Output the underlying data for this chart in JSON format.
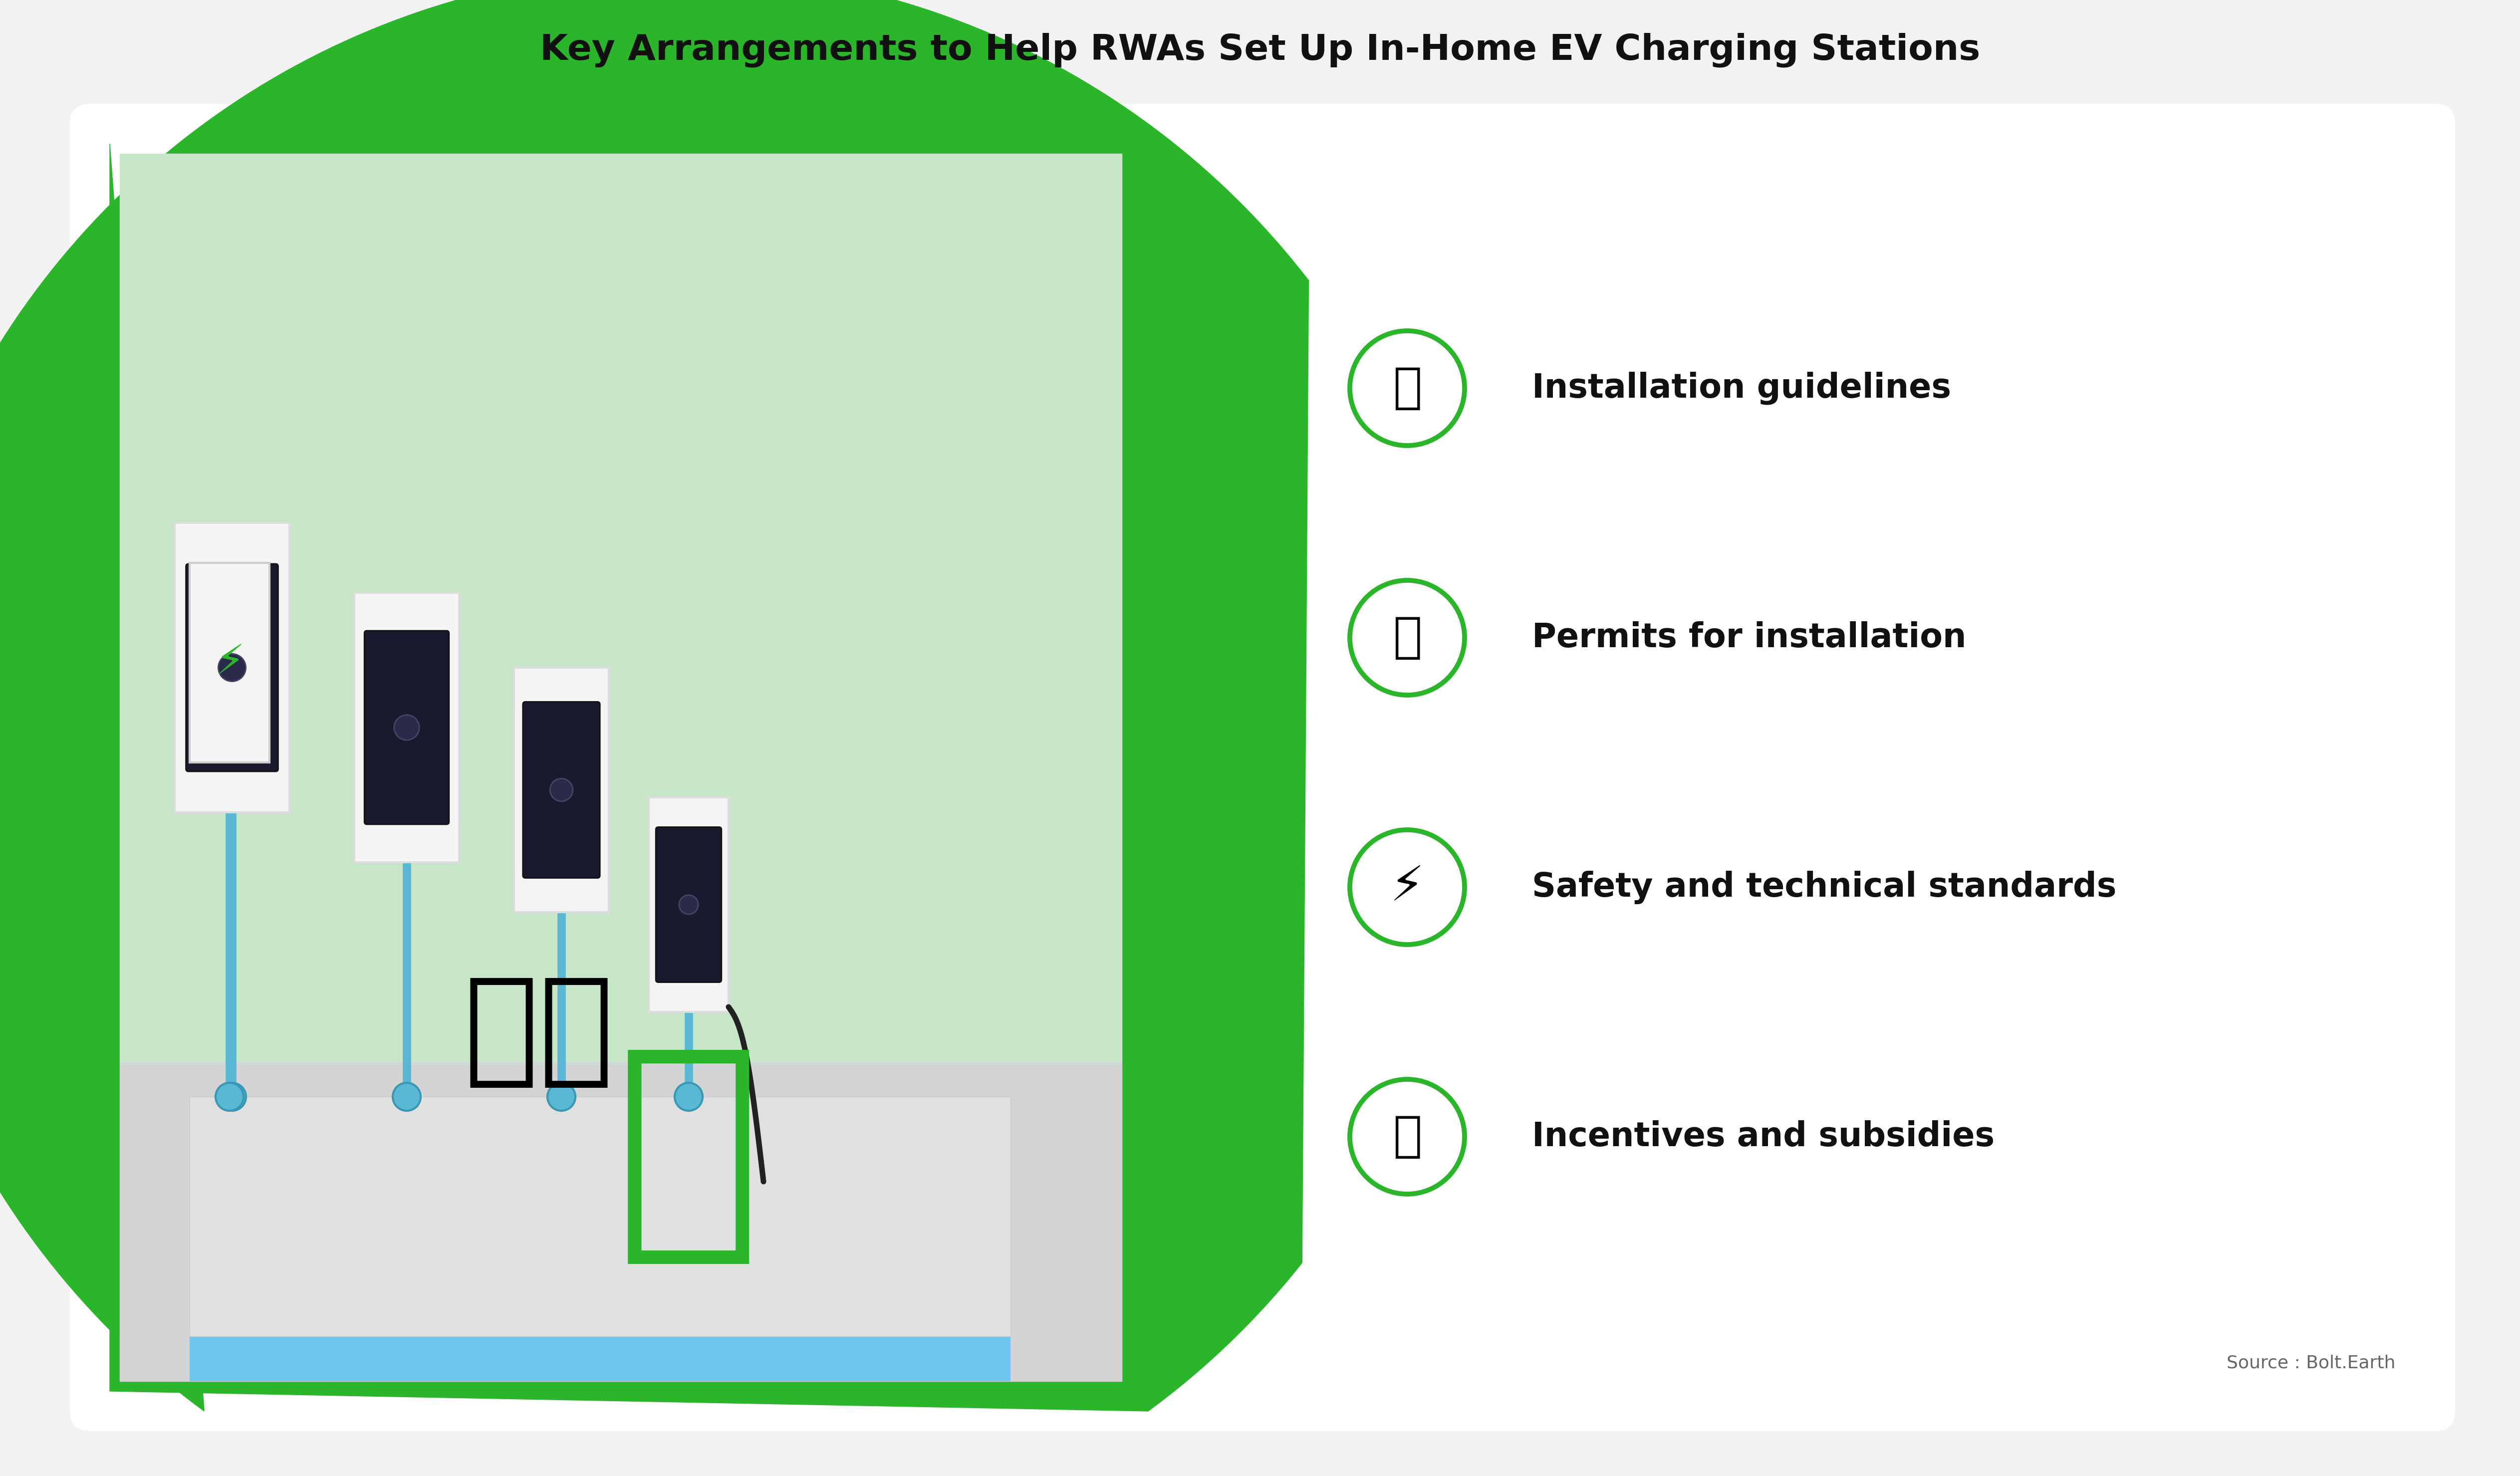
{
  "title": "Key Arrangements to Help RWAs Set Up In-Home EV Charging Stations",
  "title_fontsize": 52,
  "title_color": "#111111",
  "bg_color": "#f2f2f2",
  "card_color": "#ffffff",
  "items": [
    {
      "label": "Installation guidelines"
    },
    {
      "label": "Permits for installation"
    },
    {
      "label": "Safety and technical standards"
    },
    {
      "label": "Incentives and subsidies"
    }
  ],
  "item_fontsize": 48,
  "item_color": "#111111",
  "icon_color": "#2ab52a",
  "source_text": "Source : Bolt.Earth",
  "source_fontsize": 26,
  "green_color": "#2ab52a"
}
